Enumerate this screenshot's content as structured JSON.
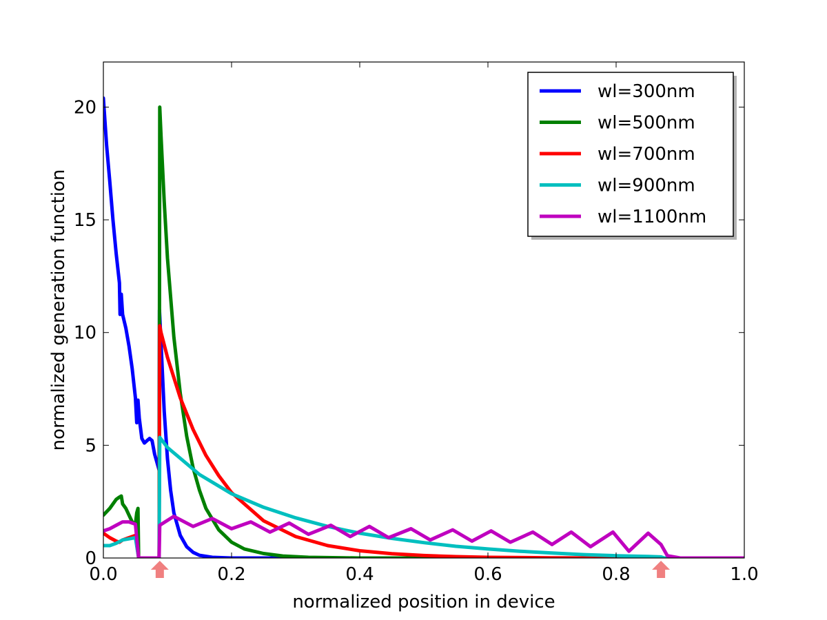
{
  "chart_data": {
    "type": "line",
    "title": "",
    "xlabel": "normalized position in device",
    "ylabel": "normalized generation function",
    "xlim": [
      0.0,
      1.0
    ],
    "ylim": [
      0,
      22
    ],
    "x_ticks": [
      "0.0",
      "0.2",
      "0.4",
      "0.6",
      "0.8",
      "1.0"
    ],
    "y_ticks": [
      "0",
      "5",
      "10",
      "15",
      "20"
    ],
    "grid": false,
    "legend_position": "top-right",
    "annotations": [
      {
        "kind": "arrow-marker",
        "x": 0.088,
        "color": "#f08080"
      },
      {
        "kind": "arrow-marker",
        "x": 0.87,
        "color": "#f08080"
      }
    ],
    "series": [
      {
        "name": "wl=300nm",
        "color": "#0000ff",
        "points": [
          [
            0.0,
            20.4
          ],
          [
            0.005,
            18.3
          ],
          [
            0.01,
            16.7
          ],
          [
            0.015,
            15.0
          ],
          [
            0.02,
            13.5
          ],
          [
            0.025,
            12.2
          ],
          [
            0.026,
            10.8
          ],
          [
            0.028,
            11.7
          ],
          [
            0.03,
            10.8
          ],
          [
            0.035,
            10.2
          ],
          [
            0.04,
            9.4
          ],
          [
            0.045,
            8.4
          ],
          [
            0.05,
            7.1
          ],
          [
            0.052,
            6.0
          ],
          [
            0.054,
            7.0
          ],
          [
            0.056,
            6.2
          ],
          [
            0.06,
            5.3
          ],
          [
            0.064,
            5.1
          ],
          [
            0.068,
            5.2
          ],
          [
            0.072,
            5.3
          ],
          [
            0.076,
            5.2
          ],
          [
            0.08,
            4.6
          ],
          [
            0.087,
            3.9
          ],
          [
            0.0875,
            11.0
          ],
          [
            0.09,
            9.5
          ],
          [
            0.095,
            6.5
          ],
          [
            0.1,
            4.4
          ],
          [
            0.105,
            3.0
          ],
          [
            0.11,
            2.0
          ],
          [
            0.12,
            1.0
          ],
          [
            0.13,
            0.5
          ],
          [
            0.14,
            0.25
          ],
          [
            0.15,
            0.12
          ],
          [
            0.17,
            0.03
          ],
          [
            0.2,
            0.0
          ],
          [
            1.0,
            0.0
          ]
        ]
      },
      {
        "name": "wl=500nm",
        "color": "#008000",
        "points": [
          [
            0.0,
            1.9
          ],
          [
            0.01,
            2.2
          ],
          [
            0.02,
            2.6
          ],
          [
            0.025,
            2.7
          ],
          [
            0.028,
            2.75
          ],
          [
            0.03,
            2.4
          ],
          [
            0.035,
            2.2
          ],
          [
            0.04,
            1.9
          ],
          [
            0.045,
            1.6
          ],
          [
            0.05,
            1.5
          ],
          [
            0.052,
            2.0
          ],
          [
            0.054,
            2.2
          ],
          [
            0.055,
            0.0
          ],
          [
            0.087,
            0.0
          ],
          [
            0.088,
            20.0
          ],
          [
            0.09,
            18.7
          ],
          [
            0.095,
            15.8
          ],
          [
            0.1,
            13.3
          ],
          [
            0.11,
            9.8
          ],
          [
            0.12,
            7.3
          ],
          [
            0.13,
            5.4
          ],
          [
            0.14,
            4.0
          ],
          [
            0.15,
            3.0
          ],
          [
            0.16,
            2.2
          ],
          [
            0.18,
            1.25
          ],
          [
            0.2,
            0.7
          ],
          [
            0.22,
            0.4
          ],
          [
            0.25,
            0.2
          ],
          [
            0.28,
            0.09
          ],
          [
            0.32,
            0.03
          ],
          [
            0.4,
            0.0
          ],
          [
            1.0,
            0.0
          ]
        ]
      },
      {
        "name": "wl=700nm",
        "color": "#ff0000",
        "points": [
          [
            0.0,
            1.1
          ],
          [
            0.01,
            0.9
          ],
          [
            0.02,
            0.75
          ],
          [
            0.025,
            0.7
          ],
          [
            0.03,
            0.8
          ],
          [
            0.04,
            0.9
          ],
          [
            0.05,
            1.0
          ],
          [
            0.055,
            0.0
          ],
          [
            0.087,
            0.0
          ],
          [
            0.088,
            10.3
          ],
          [
            0.09,
            10.0
          ],
          [
            0.1,
            8.9
          ],
          [
            0.12,
            7.1
          ],
          [
            0.14,
            5.7
          ],
          [
            0.16,
            4.55
          ],
          [
            0.18,
            3.65
          ],
          [
            0.2,
            2.9
          ],
          [
            0.25,
            1.65
          ],
          [
            0.3,
            0.95
          ],
          [
            0.35,
            0.55
          ],
          [
            0.4,
            0.32
          ],
          [
            0.45,
            0.19
          ],
          [
            0.5,
            0.11
          ],
          [
            0.55,
            0.06
          ],
          [
            0.6,
            0.03
          ],
          [
            0.7,
            0.01
          ],
          [
            0.8,
            0.0
          ],
          [
            1.0,
            0.0
          ]
        ]
      },
      {
        "name": "wl=900nm",
        "color": "#00bfbf",
        "points": [
          [
            0.0,
            0.55
          ],
          [
            0.01,
            0.55
          ],
          [
            0.02,
            0.65
          ],
          [
            0.03,
            0.8
          ],
          [
            0.04,
            0.85
          ],
          [
            0.05,
            0.9
          ],
          [
            0.055,
            0.0
          ],
          [
            0.087,
            0.0
          ],
          [
            0.088,
            5.35
          ],
          [
            0.1,
            4.9
          ],
          [
            0.15,
            3.7
          ],
          [
            0.2,
            2.85
          ],
          [
            0.25,
            2.25
          ],
          [
            0.3,
            1.78
          ],
          [
            0.35,
            1.4
          ],
          [
            0.4,
            1.1
          ],
          [
            0.45,
            0.87
          ],
          [
            0.5,
            0.68
          ],
          [
            0.55,
            0.52
          ],
          [
            0.6,
            0.4
          ],
          [
            0.65,
            0.3
          ],
          [
            0.7,
            0.22
          ],
          [
            0.75,
            0.15
          ],
          [
            0.8,
            0.1
          ],
          [
            0.85,
            0.07
          ],
          [
            0.87,
            0.05
          ],
          [
            0.875,
            0.0
          ],
          [
            1.0,
            0.0
          ]
        ]
      },
      {
        "name": "wl=1100nm",
        "color": "#bf00bf",
        "points": [
          [
            0.0,
            1.2
          ],
          [
            0.01,
            1.3
          ],
          [
            0.02,
            1.45
          ],
          [
            0.03,
            1.6
          ],
          [
            0.04,
            1.6
          ],
          [
            0.05,
            1.5
          ],
          [
            0.055,
            0.0
          ],
          [
            0.087,
            0.0
          ],
          [
            0.088,
            1.45
          ],
          [
            0.11,
            1.85
          ],
          [
            0.14,
            1.4
          ],
          [
            0.17,
            1.75
          ],
          [
            0.2,
            1.3
          ],
          [
            0.23,
            1.6
          ],
          [
            0.26,
            1.15
          ],
          [
            0.29,
            1.55
          ],
          [
            0.32,
            1.05
          ],
          [
            0.355,
            1.45
          ],
          [
            0.385,
            0.95
          ],
          [
            0.415,
            1.4
          ],
          [
            0.445,
            0.9
          ],
          [
            0.48,
            1.3
          ],
          [
            0.51,
            0.8
          ],
          [
            0.545,
            1.25
          ],
          [
            0.575,
            0.75
          ],
          [
            0.605,
            1.2
          ],
          [
            0.635,
            0.7
          ],
          [
            0.67,
            1.15
          ],
          [
            0.7,
            0.6
          ],
          [
            0.73,
            1.15
          ],
          [
            0.76,
            0.5
          ],
          [
            0.795,
            1.15
          ],
          [
            0.82,
            0.3
          ],
          [
            0.85,
            1.1
          ],
          [
            0.87,
            0.6
          ],
          [
            0.88,
            0.1
          ],
          [
            0.9,
            0.0
          ],
          [
            1.0,
            0.0
          ]
        ]
      }
    ]
  }
}
